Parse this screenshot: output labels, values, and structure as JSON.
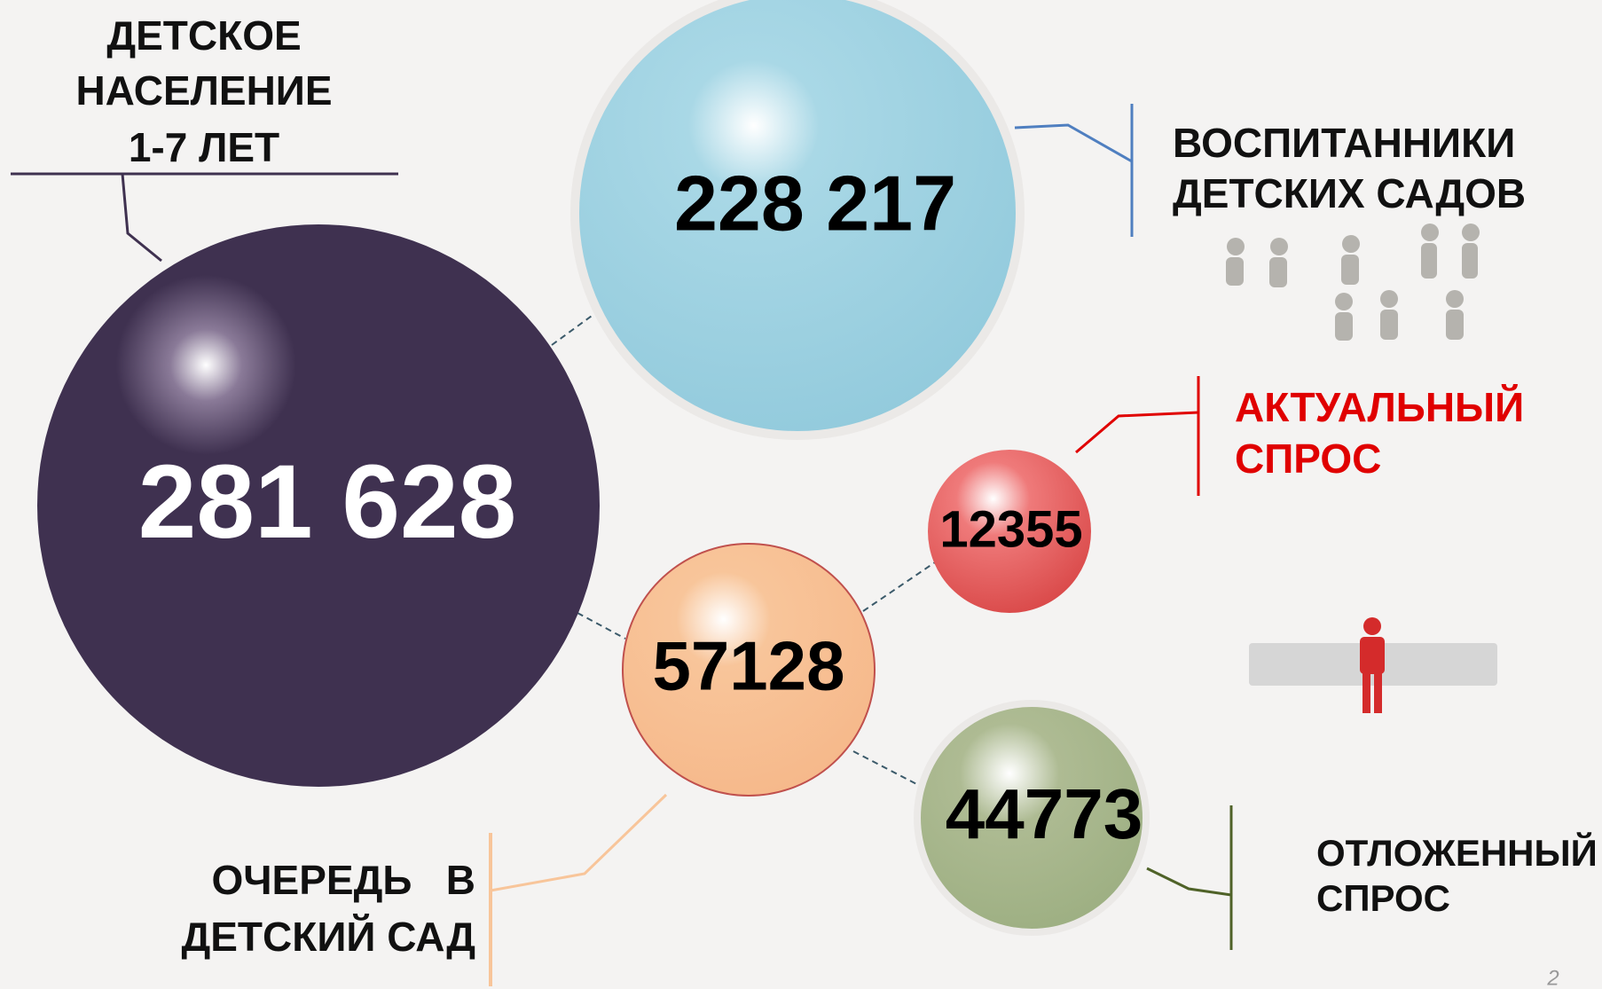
{
  "nodes": [
    {
      "value": "281 628",
      "label": [
        "ДЕТСКОЕ",
        "НАСЕЛЕНИЕ",
        "1-7 ЛЕТ"
      ]
    },
    {
      "value": "228 217",
      "label": [
        "ВОСПИТАННИКИ",
        "ДЕТСКИХ САДОВ"
      ]
    },
    {
      "value": "57128",
      "label": [
        "ОЧЕРЕДЬ   В",
        "ДЕТСКИЙ САД"
      ]
    },
    {
      "value": "12355",
      "label": [
        "АКТУАЛЬНЫЙ",
        "СПРОС"
      ]
    },
    {
      "value": "44773",
      "label": [
        "ОТЛОЖЕННЫЙ",
        "СПРОС"
      ]
    }
  ],
  "page_number": "2"
}
